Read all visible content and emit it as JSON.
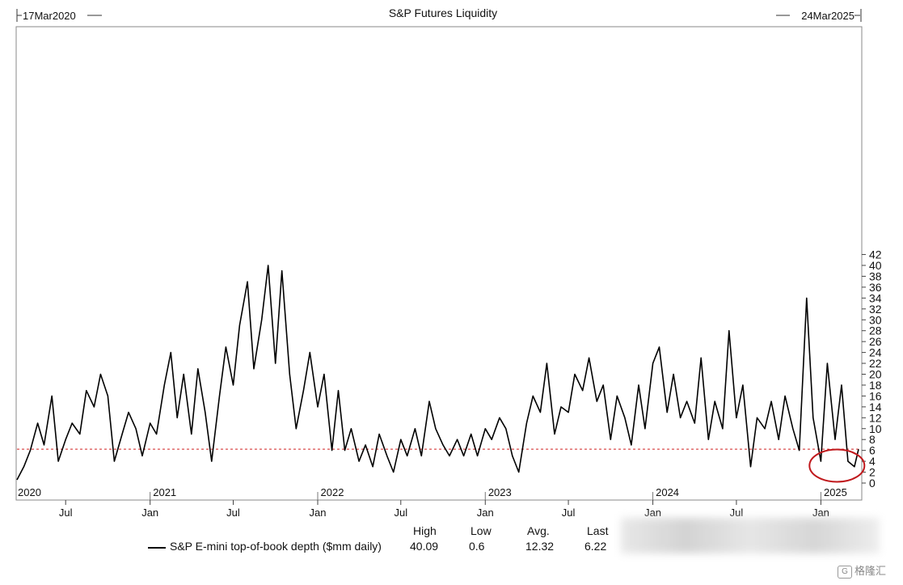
{
  "chart_data": {
    "type": "line",
    "title": "S&P Futures Liquidity",
    "start_date_label": "17Mar2020",
    "end_date_label": "24Mar2025",
    "y_ticks": [
      "0",
      "2",
      "4",
      "6",
      "8",
      "10",
      "12",
      "14",
      "16",
      "18",
      "20",
      "22",
      "24",
      "26",
      "28",
      "30",
      "32",
      "34",
      "36",
      "38",
      "40",
      "42"
    ],
    "ylim": [
      0,
      42
    ],
    "x_month_labels": [
      "Jul",
      "Jan",
      "Jul",
      "Jan",
      "Jul",
      "Jan",
      "Jul",
      "Jan",
      "Jul",
      "Jan"
    ],
    "x_year_labels": [
      "2020",
      "2021",
      "2022",
      "2023",
      "2024",
      "2025"
    ],
    "reference_line": {
      "value": 6.22,
      "style": "dashed",
      "color": "#d02020"
    },
    "highlight_circle": {
      "color": "#c0181c"
    },
    "series": [
      {
        "name": "S&P E-mini top-of-book depth ($mm daily)",
        "color": "#000000",
        "points": [
          [
            "2020-03-17",
            0.6
          ],
          [
            "2020-04-01",
            3
          ],
          [
            "2020-04-15",
            6
          ],
          [
            "2020-05-01",
            11
          ],
          [
            "2020-05-15",
            7
          ],
          [
            "2020-06-01",
            16
          ],
          [
            "2020-06-15",
            4
          ],
          [
            "2020-07-01",
            8
          ],
          [
            "2020-07-15",
            11
          ],
          [
            "2020-08-01",
            9
          ],
          [
            "2020-08-15",
            17
          ],
          [
            "2020-09-01",
            14
          ],
          [
            "2020-09-15",
            20
          ],
          [
            "2020-10-01",
            16
          ],
          [
            "2020-10-15",
            4
          ],
          [
            "2020-11-01",
            9
          ],
          [
            "2020-11-15",
            13
          ],
          [
            "2020-12-01",
            10
          ],
          [
            "2020-12-15",
            5
          ],
          [
            "2021-01-01",
            11
          ],
          [
            "2021-01-15",
            9
          ],
          [
            "2021-02-01",
            18
          ],
          [
            "2021-02-15",
            24
          ],
          [
            "2021-03-01",
            12
          ],
          [
            "2021-03-15",
            20
          ],
          [
            "2021-04-01",
            9
          ],
          [
            "2021-04-15",
            21
          ],
          [
            "2021-05-01",
            13
          ],
          [
            "2021-05-15",
            4
          ],
          [
            "2021-06-01",
            16
          ],
          [
            "2021-06-15",
            25
          ],
          [
            "2021-07-01",
            18
          ],
          [
            "2021-07-15",
            29
          ],
          [
            "2021-08-01",
            37
          ],
          [
            "2021-08-15",
            21
          ],
          [
            "2021-09-01",
            30
          ],
          [
            "2021-09-15",
            40
          ],
          [
            "2021-10-01",
            22
          ],
          [
            "2021-10-15",
            39
          ],
          [
            "2021-11-01",
            20
          ],
          [
            "2021-11-15",
            10
          ],
          [
            "2021-12-01",
            17
          ],
          [
            "2021-12-15",
            24
          ],
          [
            "2022-01-01",
            14
          ],
          [
            "2022-01-15",
            20
          ],
          [
            "2022-02-01",
            6
          ],
          [
            "2022-02-15",
            17
          ],
          [
            "2022-03-01",
            6
          ],
          [
            "2022-03-15",
            10
          ],
          [
            "2022-04-01",
            4
          ],
          [
            "2022-04-15",
            7
          ],
          [
            "2022-05-01",
            3
          ],
          [
            "2022-05-15",
            9
          ],
          [
            "2022-06-01",
            5
          ],
          [
            "2022-06-15",
            2
          ],
          [
            "2022-07-01",
            8
          ],
          [
            "2022-07-15",
            5
          ],
          [
            "2022-08-01",
            10
          ],
          [
            "2022-08-15",
            5
          ],
          [
            "2022-09-01",
            15
          ],
          [
            "2022-09-15",
            10
          ],
          [
            "2022-10-01",
            7
          ],
          [
            "2022-10-15",
            5
          ],
          [
            "2022-11-01",
            8
          ],
          [
            "2022-11-15",
            5
          ],
          [
            "2022-12-01",
            9
          ],
          [
            "2022-12-15",
            5
          ],
          [
            "2023-01-01",
            10
          ],
          [
            "2023-01-15",
            8
          ],
          [
            "2023-02-01",
            12
          ],
          [
            "2023-02-15",
            10
          ],
          [
            "2023-03-01",
            5
          ],
          [
            "2023-03-15",
            2
          ],
          [
            "2023-04-01",
            11
          ],
          [
            "2023-04-15",
            16
          ],
          [
            "2023-05-01",
            13
          ],
          [
            "2023-05-15",
            22
          ],
          [
            "2023-06-01",
            9
          ],
          [
            "2023-06-15",
            14
          ],
          [
            "2023-07-01",
            13
          ],
          [
            "2023-07-15",
            20
          ],
          [
            "2023-08-01",
            17
          ],
          [
            "2023-08-15",
            23
          ],
          [
            "2023-09-01",
            15
          ],
          [
            "2023-09-15",
            18
          ],
          [
            "2023-10-01",
            8
          ],
          [
            "2023-10-15",
            16
          ],
          [
            "2023-11-01",
            12
          ],
          [
            "2023-11-15",
            7
          ],
          [
            "2023-12-01",
            18
          ],
          [
            "2023-12-15",
            10
          ],
          [
            "2024-01-01",
            22
          ],
          [
            "2024-01-15",
            25
          ],
          [
            "2024-02-01",
            13
          ],
          [
            "2024-02-15",
            20
          ],
          [
            "2024-03-01",
            12
          ],
          [
            "2024-03-15",
            15
          ],
          [
            "2024-04-01",
            11
          ],
          [
            "2024-04-15",
            23
          ],
          [
            "2024-05-01",
            8
          ],
          [
            "2024-05-15",
            15
          ],
          [
            "2024-06-01",
            10
          ],
          [
            "2024-06-15",
            28
          ],
          [
            "2024-07-01",
            12
          ],
          [
            "2024-07-15",
            18
          ],
          [
            "2024-08-01",
            3
          ],
          [
            "2024-08-15",
            12
          ],
          [
            "2024-09-01",
            10
          ],
          [
            "2024-09-15",
            15
          ],
          [
            "2024-10-01",
            8
          ],
          [
            "2024-10-15",
            16
          ],
          [
            "2024-11-01",
            10
          ],
          [
            "2024-11-15",
            6
          ],
          [
            "2024-12-01",
            34
          ],
          [
            "2024-12-15",
            12
          ],
          [
            "2025-01-01",
            4
          ],
          [
            "2025-01-15",
            22
          ],
          [
            "2025-02-01",
            8
          ],
          [
            "2025-02-15",
            18
          ],
          [
            "2025-03-01",
            4
          ],
          [
            "2025-03-15",
            3
          ],
          [
            "2025-03-24",
            6.22
          ]
        ]
      }
    ],
    "stats": {
      "headers": [
        "High",
        "Low",
        "Avg.",
        "Last"
      ],
      "values": [
        "40.09",
        "0.6",
        "12.32",
        "6.22"
      ]
    }
  },
  "watermark": {
    "text": "格隆汇",
    "icon": "G"
  }
}
